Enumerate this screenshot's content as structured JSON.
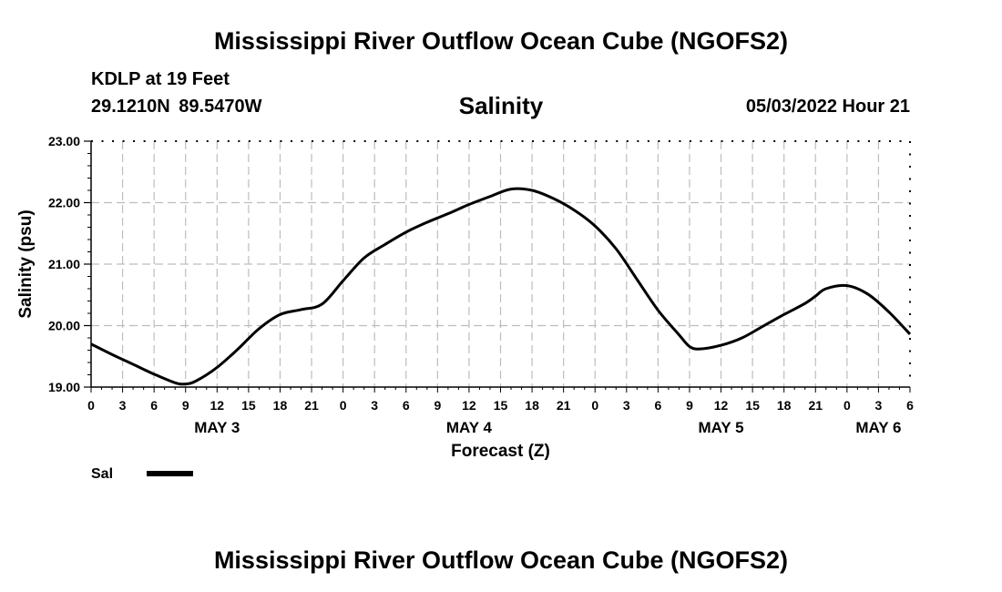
{
  "header": {
    "title": "Mississippi River Outflow Ocean Cube (NGOFS2)",
    "station_name": "KDLP at 19 Feet",
    "station_coords": "29.1210N  89.5470W",
    "run_time": "05/03/2022 Hour 21"
  },
  "footer": {
    "title": "Mississippi River Outflow Ocean Cube (NGOFS2)"
  },
  "chart_data": {
    "type": "line",
    "title": "Salinity",
    "ylabel": "Salinity (psu)",
    "xlabel": "Forecast (Z)",
    "xlim": [
      0,
      78
    ],
    "ylim": [
      19.0,
      23.0
    ],
    "grid": true,
    "x_unit": "hours since 05/03 00Z",
    "y_ticks": [
      "19.00",
      "20.00",
      "21.00",
      "22.00",
      "23.00"
    ],
    "x_tick_labels": [
      "0",
      "3",
      "6",
      "9",
      "12",
      "15",
      "18",
      "21",
      "0",
      "3",
      "6",
      "9",
      "12",
      "15",
      "18",
      "21",
      "0",
      "3",
      "6",
      "9",
      "12",
      "15",
      "18",
      "21",
      "0",
      "3",
      "6"
    ],
    "day_labels": [
      {
        "label": "MAY 3",
        "hour": 12
      },
      {
        "label": "MAY 4",
        "hour": 36
      },
      {
        "label": "MAY 5",
        "hour": 60
      },
      {
        "label": "MAY 6",
        "hour": 75
      }
    ],
    "legend": {
      "label": "Sal",
      "position": "bottom-left",
      "color": "#000000"
    },
    "series": [
      {
        "name": "Sal",
        "color": "#000000",
        "x": [
          0,
          2,
          4,
          6,
          8,
          9,
          10,
          12,
          14,
          16,
          18,
          20,
          22,
          24,
          26,
          28,
          30,
          32,
          34,
          36,
          38,
          40,
          42,
          44,
          46,
          48,
          50,
          52,
          54,
          56,
          57,
          58,
          60,
          62,
          64,
          66,
          68,
          69,
          70,
          72,
          74,
          76,
          78
        ],
        "values": [
          19.7,
          19.53,
          19.37,
          19.21,
          19.07,
          19.05,
          19.1,
          19.32,
          19.62,
          19.95,
          20.18,
          20.26,
          20.35,
          20.73,
          21.1,
          21.32,
          21.52,
          21.68,
          21.82,
          21.97,
          22.1,
          22.22,
          22.2,
          22.07,
          21.88,
          21.62,
          21.25,
          20.75,
          20.25,
          19.85,
          19.66,
          19.62,
          19.68,
          19.8,
          19.99,
          20.18,
          20.36,
          20.48,
          20.6,
          20.65,
          20.51,
          20.22,
          19.86
        ]
      }
    ]
  }
}
